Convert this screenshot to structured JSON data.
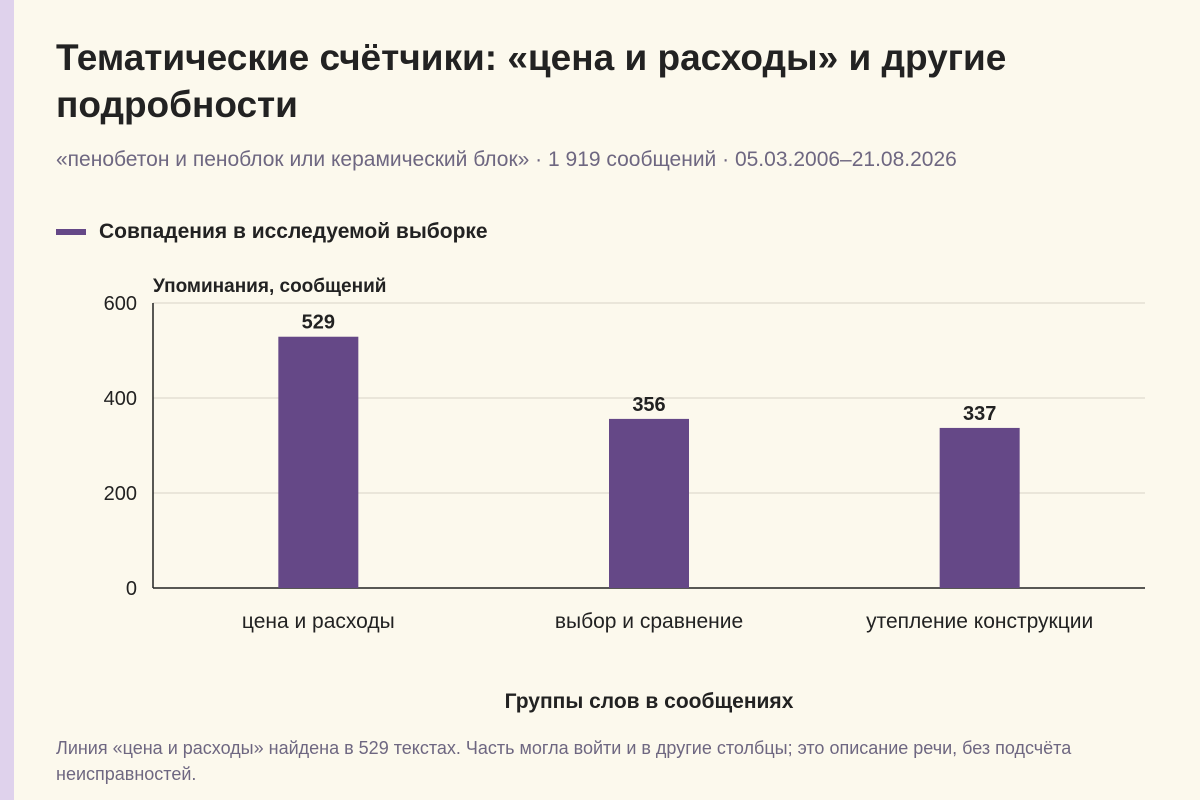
{
  "header": {
    "title": "Тематические счётчики: «цена и расходы» и другие подробности",
    "subtitle": "«пенобетон и пеноблок или керамический блок» · 1 919 сообщений · 05.03.2006–21.08.2026"
  },
  "colors": {
    "bar": "#654887",
    "grid": "#d8d3c6",
    "axis": "#222222",
    "accent_strip": "#dfd2ec"
  },
  "chart_data": {
    "type": "bar",
    "title": "Тематические счётчики: «цена и расходы» и другие подробности",
    "ylabel": "Упоминания, сообщений",
    "xlabel": "Группы слов в сообщениях",
    "categories": [
      "цена и расходы",
      "выбор и сравнение",
      "утепление конструкции"
    ],
    "series": [
      {
        "name": "Совпадения в исследуемой выборке",
        "values": [
          529,
          356,
          337
        ]
      }
    ],
    "ylim": [
      0,
      600
    ],
    "yticks": [
      0,
      200,
      400,
      600
    ],
    "grid": true,
    "legend": "top-left",
    "data_labels": true
  },
  "footnote": "Линия «цена и расходы» найдена в 529 текстах. Часть могла войти и в другие столбцы; это описание речи, без подсчёта неисправностей."
}
